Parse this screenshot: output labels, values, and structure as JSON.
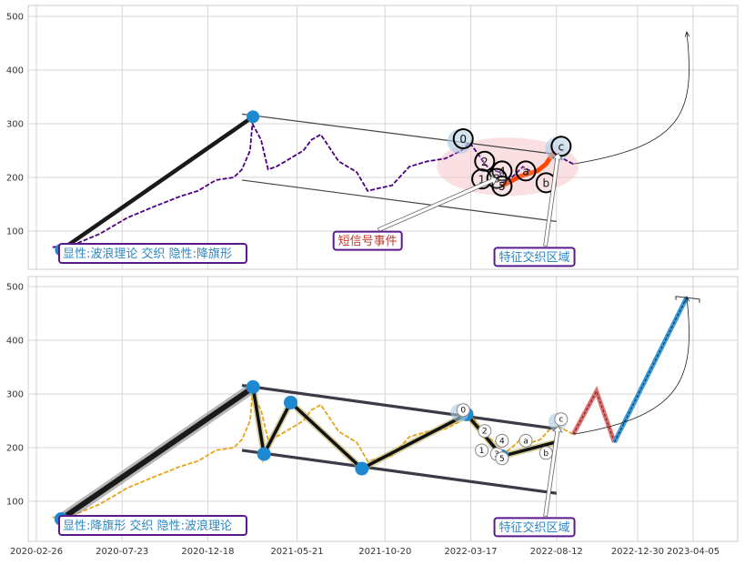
{
  "chart_data": [
    {
      "type": "line",
      "panel": "top",
      "y_ticks": [
        100,
        200,
        300,
        400,
        500
      ],
      "ylim": [
        28,
        522
      ],
      "grid": true,
      "price_series": {
        "color": "#4b0082",
        "x": [
          "2020-03-25",
          "2020-05-01",
          "2020-06-15",
          "2020-08-01",
          "2020-09-15",
          "2020-11-01",
          "2020-12-01",
          "2021-01-01",
          "2021-02-01",
          "2021-02-15",
          "2021-03-01",
          "2021-03-05",
          "2021-03-10",
          "2021-03-20",
          "2021-04-01",
          "2021-04-15",
          "2021-05-01",
          "2021-06-01",
          "2021-06-15",
          "2021-07-01",
          "2021-08-01",
          "2021-09-01",
          "2021-09-20",
          "2021-10-10",
          "2021-11-01",
          "2021-12-01",
          "2022-01-01",
          "2022-02-01",
          "2022-03-01",
          "2022-03-15",
          "2022-04-01",
          "2022-04-10",
          "2022-04-20",
          "2022-05-05",
          "2022-05-15",
          "2022-06-01",
          "2022-06-15",
          "2022-07-01",
          "2022-07-15",
          "2022-08-01",
          "2022-08-15",
          "2022-09-01",
          "2022-09-10"
        ],
        "y": [
          70,
          75,
          95,
          125,
          145,
          165,
          175,
          195,
          200,
          215,
          250,
          300,
          290,
          270,
          215,
          220,
          230,
          250,
          270,
          280,
          230,
          210,
          175,
          180,
          185,
          220,
          230,
          235,
          250,
          265,
          240,
          225,
          215,
          210,
          190,
          205,
          220,
          210,
          215,
          235,
          240,
          230,
          225
        ]
      },
      "trend_line": {
        "x": [
          "2020-04-09",
          "2021-03-06"
        ],
        "y": [
          65,
          313
        ]
      },
      "channel_upper": {
        "x": [
          "2021-02-15",
          "2022-08-12"
        ],
        "y": [
          318,
          243
        ]
      },
      "channel_lower": {
        "x": [
          "2021-02-15",
          "2022-08-12"
        ],
        "y": [
          195,
          118
        ]
      },
      "wave_circles": [
        {
          "label": "0",
          "x": "2022-03-04",
          "y": 272
        },
        {
          "label": "2",
          "x": "2022-04-10",
          "y": 230
        },
        {
          "label": "1",
          "x": "2022-04-05",
          "y": 197
        },
        {
          "label": "4",
          "x": "2022-05-10",
          "y": 212
        },
        {
          "label": "3",
          "x": "2022-05-01",
          "y": 198
        },
        {
          "label": "5",
          "x": "2022-05-10",
          "y": 184
        },
        {
          "label": "a",
          "x": "2022-06-20",
          "y": 212
        },
        {
          "label": "b",
          "x": "2022-07-25",
          "y": 190
        },
        {
          "label": "c",
          "x": "2022-08-20",
          "y": 258
        }
      ],
      "wave_path": {
        "color": "#ff4500",
        "x": [
          "2022-05-10",
          "2022-06-10",
          "2022-07-10",
          "2022-07-25",
          "2022-08-08"
        ],
        "y": [
          184,
          202,
          212,
          225,
          248
        ]
      },
      "ellipse_center": {
        "x": "2022-05-20",
        "y": 220
      },
      "extension_target": {
        "x": "2023-03-25",
        "y": 480
      },
      "annotations": [
        {
          "text": "短信号事件",
          "color": "#c0392b",
          "anchor_x": "2022-05-01",
          "anchor_y": 198,
          "label_x": "2021-09-20",
          "label_y": 82
        },
        {
          "text": "特征交织区域",
          "color": "#2e86c1",
          "anchor_x": "2022-08-15",
          "anchor_y": 245,
          "label_x": "2022-07-05",
          "label_y": 52
        }
      ],
      "bottom_label": {
        "text": "显性:波浪理论 交织 隐性:降旗形",
        "color": "#2e86c1"
      }
    },
    {
      "type": "line",
      "panel": "bottom",
      "y_ticks": [
        100,
        200,
        300,
        400,
        500
      ],
      "ylim": [
        28,
        522
      ],
      "grid": true,
      "x_ticks": [
        "2020-02-26",
        "2020-07-23",
        "2020-12-18",
        "2021-05-21",
        "2021-10-20",
        "2022-03-17",
        "2022-08-12",
        "2022-12-30",
        "2023-04-05"
      ],
      "price_series": {
        "color": "#e8a317",
        "x": [
          "2020-03-25",
          "2020-05-01",
          "2020-06-15",
          "2020-08-01",
          "2020-09-15",
          "2020-11-01",
          "2020-12-01",
          "2021-01-01",
          "2021-02-01",
          "2021-02-15",
          "2021-03-01",
          "2021-03-05",
          "2021-03-10",
          "2021-03-20",
          "2021-04-01",
          "2021-04-15",
          "2021-05-01",
          "2021-06-01",
          "2021-06-15",
          "2021-07-01",
          "2021-08-01",
          "2021-09-01",
          "2021-09-20",
          "2021-10-10",
          "2021-11-01",
          "2021-12-01",
          "2022-01-01",
          "2022-02-01",
          "2022-03-01",
          "2022-03-15",
          "2022-04-01",
          "2022-04-10",
          "2022-04-20",
          "2022-05-05",
          "2022-05-15",
          "2022-06-01",
          "2022-06-15",
          "2022-07-01",
          "2022-07-15",
          "2022-08-01",
          "2022-08-15",
          "2022-09-01",
          "2022-09-10"
        ],
        "y": [
          70,
          75,
          95,
          125,
          145,
          165,
          175,
          195,
          200,
          215,
          250,
          300,
          290,
          270,
          215,
          220,
          230,
          250,
          270,
          280,
          230,
          210,
          175,
          180,
          185,
          220,
          230,
          235,
          250,
          265,
          240,
          225,
          215,
          210,
          190,
          205,
          220,
          210,
          215,
          235,
          240,
          230,
          225
        ]
      },
      "flag_pole": {
        "x": [
          "2020-04-09",
          "2021-03-06"
        ],
        "y": [
          67,
          312
        ]
      },
      "channel_upper": {
        "x": [
          "2021-02-15",
          "2022-08-12"
        ],
        "y": [
          316,
          235
        ]
      },
      "channel_lower": {
        "x": [
          "2021-02-15",
          "2022-08-12"
        ],
        "y": [
          195,
          115
        ]
      },
      "zigzag": {
        "x": [
          "2021-03-06",
          "2021-03-25",
          "2021-05-10",
          "2021-09-10",
          "2022-03-10",
          "2022-05-10",
          "2022-08-10"
        ],
        "y": [
          313,
          188,
          284,
          161,
          262,
          184,
          210
        ]
      },
      "pivot_points": {
        "x": [
          "2020-04-09",
          "2021-03-06",
          "2021-03-25",
          "2021-05-10",
          "2021-09-10",
          "2022-03-10",
          "2022-05-10"
        ],
        "y": [
          67,
          313,
          188,
          284,
          161,
          262,
          184
        ]
      },
      "wave_circles": [
        {
          "label": "0",
          "x": "2022-03-04",
          "y": 270
        },
        {
          "label": "2",
          "x": "2022-04-10",
          "y": 231
        },
        {
          "label": "1",
          "x": "2022-04-05",
          "y": 195
        },
        {
          "label": "4",
          "x": "2022-05-10",
          "y": 213
        },
        {
          "label": "3",
          "x": "2022-05-01",
          "y": 188
        },
        {
          "label": "5",
          "x": "2022-05-10",
          "y": 180
        },
        {
          "label": "a",
          "x": "2022-06-20",
          "y": 213
        },
        {
          "label": "b",
          "x": "2022-07-25",
          "y": 190
        },
        {
          "label": "c",
          "x": "2022-08-20",
          "y": 253
        }
      ],
      "projection_red": {
        "x": [
          "2022-09-10",
          "2022-10-20",
          "2022-11-20"
        ],
        "y": [
          225,
          305,
          210
        ]
      },
      "projection_blue": {
        "x": [
          "2022-11-20",
          "2023-03-25"
        ],
        "y": [
          210,
          480
        ]
      },
      "extension_target": {
        "x": "2023-03-25",
        "y": 480
      },
      "annotations": [
        {
          "text": "特征交织区域",
          "color": "#2e86c1",
          "anchor_x": "2022-08-15",
          "anchor_y": 240,
          "label_x": "2022-07-05",
          "label_y": 52
        }
      ],
      "bottom_label": {
        "text": "显性:降旗形 交织 隐性:波浪理论",
        "color": "#2e86c1"
      }
    }
  ]
}
